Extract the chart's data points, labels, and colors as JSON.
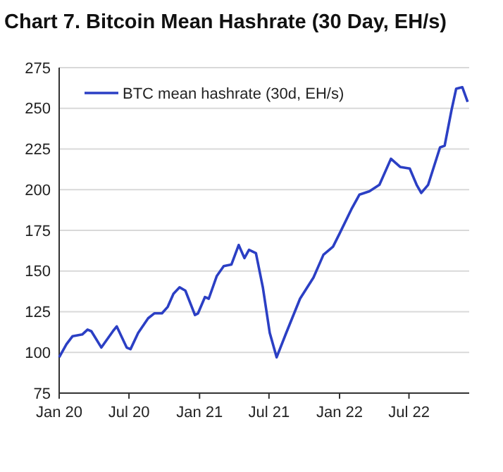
{
  "chart_data": {
    "type": "line",
    "title": "Chart 7. Bitcoin Mean Hashrate (30 Day, EH/s)",
    "x": [
      "2020-01-01",
      "2020-01-20",
      "2020-02-05",
      "2020-03-01",
      "2020-03-15",
      "2020-03-25",
      "2020-04-20",
      "2020-05-20",
      "2020-05-30",
      "2020-06-25",
      "2020-07-05",
      "2020-07-25",
      "2020-08-20",
      "2020-09-05",
      "2020-09-25",
      "2020-10-10",
      "2020-10-25",
      "2020-11-10",
      "2020-11-25",
      "2020-12-20",
      "2020-12-28",
      "2021-01-15",
      "2021-01-25",
      "2021-02-15",
      "2021-03-05",
      "2021-03-25",
      "2021-04-13",
      "2021-04-28",
      "2021-05-10",
      "2021-05-28",
      "2021-06-15",
      "2021-07-03",
      "2021-07-21",
      "2021-08-15",
      "2021-09-20",
      "2021-10-25",
      "2021-11-20",
      "2021-12-15",
      "2022-01-01",
      "2022-02-01",
      "2022-02-22",
      "2022-03-20",
      "2022-04-15",
      "2022-05-15",
      "2022-06-08",
      "2022-07-03",
      "2022-07-21",
      "2022-08-02",
      "2022-08-20",
      "2022-09-20",
      "2022-10-02",
      "2022-10-20",
      "2022-11-01",
      "2022-11-17",
      "2022-12-01"
    ],
    "series": [
      {
        "name": "BTC mean hashrate (30d, EH/s)",
        "color": "#2b3fc4",
        "values": [
          97,
          105,
          110,
          111,
          114,
          113,
          103,
          113,
          116,
          103,
          102,
          112,
          121,
          124,
          124,
          128,
          136,
          140,
          138,
          123,
          124,
          134,
          133,
          147,
          153,
          154,
          166,
          158,
          163,
          161,
          140,
          112,
          97,
          112,
          133,
          146,
          160,
          165,
          173,
          188,
          197,
          199,
          203,
          219,
          214,
          213,
          203,
          198,
          203,
          226,
          227,
          249,
          262,
          263,
          254
        ]
      }
    ],
    "xlim": [
      "2020-01-01",
      "2022-12-05"
    ],
    "xticks": [
      {
        "value": "2020-01-01",
        "label": "Jan 20"
      },
      {
        "value": "2020-07-01",
        "label": "Jul 20"
      },
      {
        "value": "2021-01-01",
        "label": "Jan 21"
      },
      {
        "value": "2021-07-01",
        "label": "Jul 21"
      },
      {
        "value": "2022-01-01",
        "label": "Jan 22"
      },
      {
        "value": "2022-07-01",
        "label": "Jul 22"
      }
    ],
    "ylim": [
      75,
      275
    ],
    "yticks": [
      75,
      100,
      125,
      150,
      175,
      200,
      225,
      250,
      275
    ],
    "grid": "y",
    "legend": "top left",
    "marker": "none",
    "line_style": "solid"
  }
}
